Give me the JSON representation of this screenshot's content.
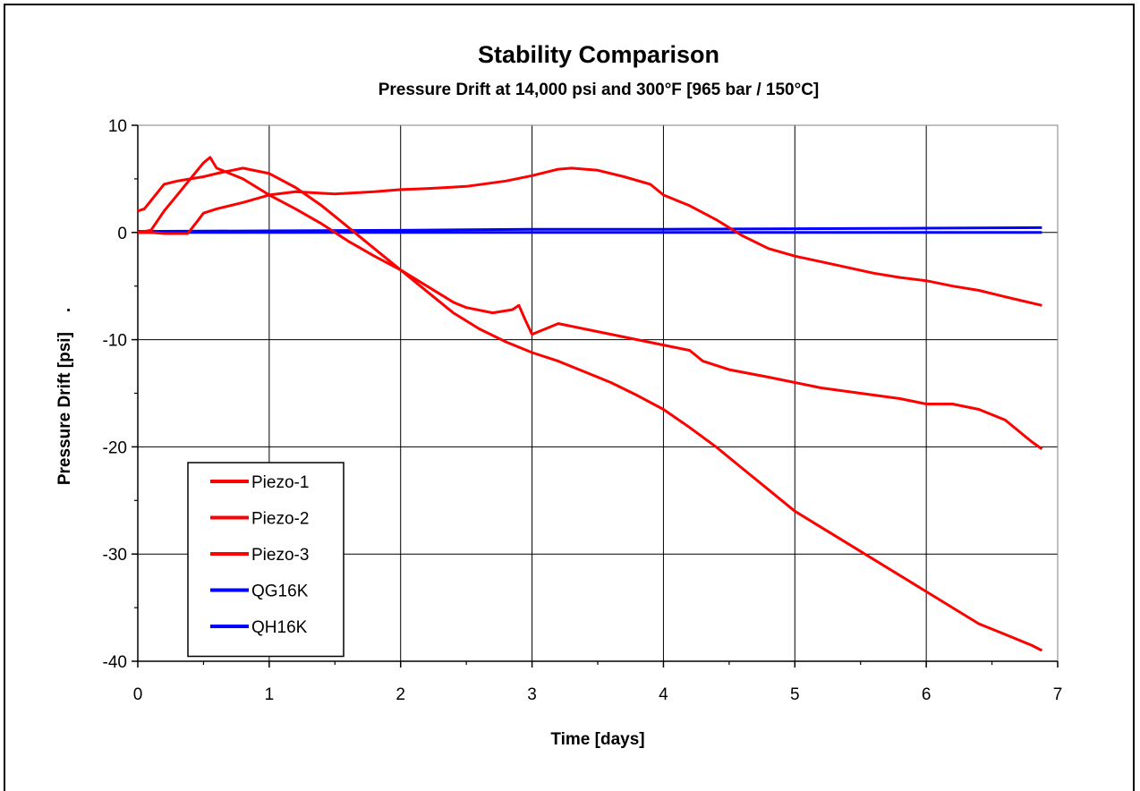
{
  "chart_data": {
    "type": "line",
    "title": "Stability Comparison",
    "subtitle": "Pressure Drift at 14,000 psi and 300°F [965 bar / 150°C]",
    "xlabel": "Time [days]",
    "ylabel": "Pressure Drift [psi]",
    "ylabel_suffix": ".",
    "xlim": [
      0,
      7
    ],
    "ylim": [
      -40,
      10
    ],
    "x_ticks": [
      "0",
      "1",
      "2",
      "3",
      "4",
      "5",
      "6",
      "7"
    ],
    "y_ticks": [
      "10",
      "0",
      "-10",
      "-20",
      "-30",
      "-40"
    ],
    "grid": true,
    "legend_position": "bottom-left",
    "series": [
      {
        "name": "Piezo-1",
        "color": "#ff0000",
        "x": [
          0,
          0.05,
          0.2,
          0.3,
          0.4,
          0.5,
          0.6,
          0.8,
          1.0,
          1.2,
          1.4,
          1.6,
          1.8,
          2.0,
          2.2,
          2.4,
          2.6,
          2.8,
          3.0,
          3.2,
          3.4,
          3.6,
          3.8,
          4.0,
          4.2,
          4.4,
          4.6,
          4.8,
          5.0,
          5.2,
          5.4,
          5.6,
          5.8,
          6.0,
          6.2,
          6.4,
          6.6,
          6.8,
          6.88
        ],
        "y": [
          2,
          2.2,
          4.5,
          4.8,
          5,
          5.2,
          5.5,
          6,
          5.5,
          4.2,
          2.5,
          0.5,
          -1.5,
          -3.5,
          -5.5,
          -7.5,
          -9,
          -10.2,
          -11.2,
          -12,
          -13,
          -14,
          -15.2,
          -16.5,
          -18.2,
          -20,
          -22,
          -24,
          -26,
          -27.5,
          -29,
          -30.5,
          -32,
          -33.5,
          -35,
          -36.5,
          -37.5,
          -38.5,
          -39
        ]
      },
      {
        "name": "Piezo-2",
        "color": "#ff0000",
        "x": [
          0,
          0.1,
          0.2,
          0.3,
          0.4,
          0.5,
          0.55,
          0.6,
          0.7,
          0.8,
          1.0,
          1.2,
          1.4,
          1.6,
          1.8,
          2.0,
          2.2,
          2.4,
          2.5,
          2.7,
          2.85,
          2.9,
          2.95,
          3.0,
          3.1,
          3.2,
          3.4,
          3.6,
          3.8,
          4.0,
          4.2,
          4.3,
          4.5,
          4.8,
          5.0,
          5.2,
          5.5,
          5.8,
          6.0,
          6.2,
          6.4,
          6.6,
          6.8,
          6.88
        ],
        "y": [
          0,
          0.2,
          2,
          3.5,
          5,
          6.5,
          7,
          6,
          5.5,
          5,
          3.5,
          2.2,
          0.8,
          -0.8,
          -2.2,
          -3.5,
          -5,
          -6.5,
          -7,
          -7.5,
          -7.2,
          -6.8,
          -8.2,
          -9.5,
          -9,
          -8.5,
          -9,
          -9.5,
          -10,
          -10.5,
          -11,
          -12,
          -12.8,
          -13.5,
          -14,
          -14.5,
          -15,
          -15.5,
          -16,
          -16,
          -16.5,
          -17.5,
          -19.5,
          -20.2
        ]
      },
      {
        "name": "Piezo-3",
        "color": "#ff0000",
        "x": [
          0,
          0.1,
          0.2,
          0.3,
          0.38,
          0.45,
          0.5,
          0.6,
          0.8,
          1.0,
          1.2,
          1.5,
          1.8,
          2.0,
          2.2,
          2.5,
          2.8,
          3.0,
          3.2,
          3.3,
          3.5,
          3.7,
          3.9,
          4.0,
          4.2,
          4.4,
          4.6,
          4.8,
          5.0,
          5.3,
          5.6,
          5.8,
          6.0,
          6.2,
          6.4,
          6.6,
          6.88
        ],
        "y": [
          0,
          0,
          -0.1,
          -0.1,
          -0.1,
          1,
          1.8,
          2.2,
          2.8,
          3.5,
          3.8,
          3.6,
          3.8,
          4.0,
          4.1,
          4.3,
          4.8,
          5.3,
          5.9,
          6.0,
          5.8,
          5.2,
          4.5,
          3.5,
          2.5,
          1.2,
          -0.3,
          -1.5,
          -2.2,
          -3.0,
          -3.8,
          -4.2,
          -4.5,
          -5.0,
          -5.4,
          -6.0,
          -6.8
        ]
      },
      {
        "name": "QG16K",
        "color": "#0000ff",
        "x": [
          0,
          1,
          2,
          3,
          4,
          5,
          6,
          6.88
        ],
        "y": [
          0.1,
          0.15,
          0.2,
          0.3,
          0.3,
          0.35,
          0.4,
          0.45
        ]
      },
      {
        "name": "QH16K",
        "color": "#0000ff",
        "x": [
          0,
          1,
          2,
          3,
          4,
          5,
          6,
          6.88
        ],
        "y": [
          0,
          0,
          0,
          0,
          0,
          0,
          0,
          0
        ]
      }
    ]
  }
}
